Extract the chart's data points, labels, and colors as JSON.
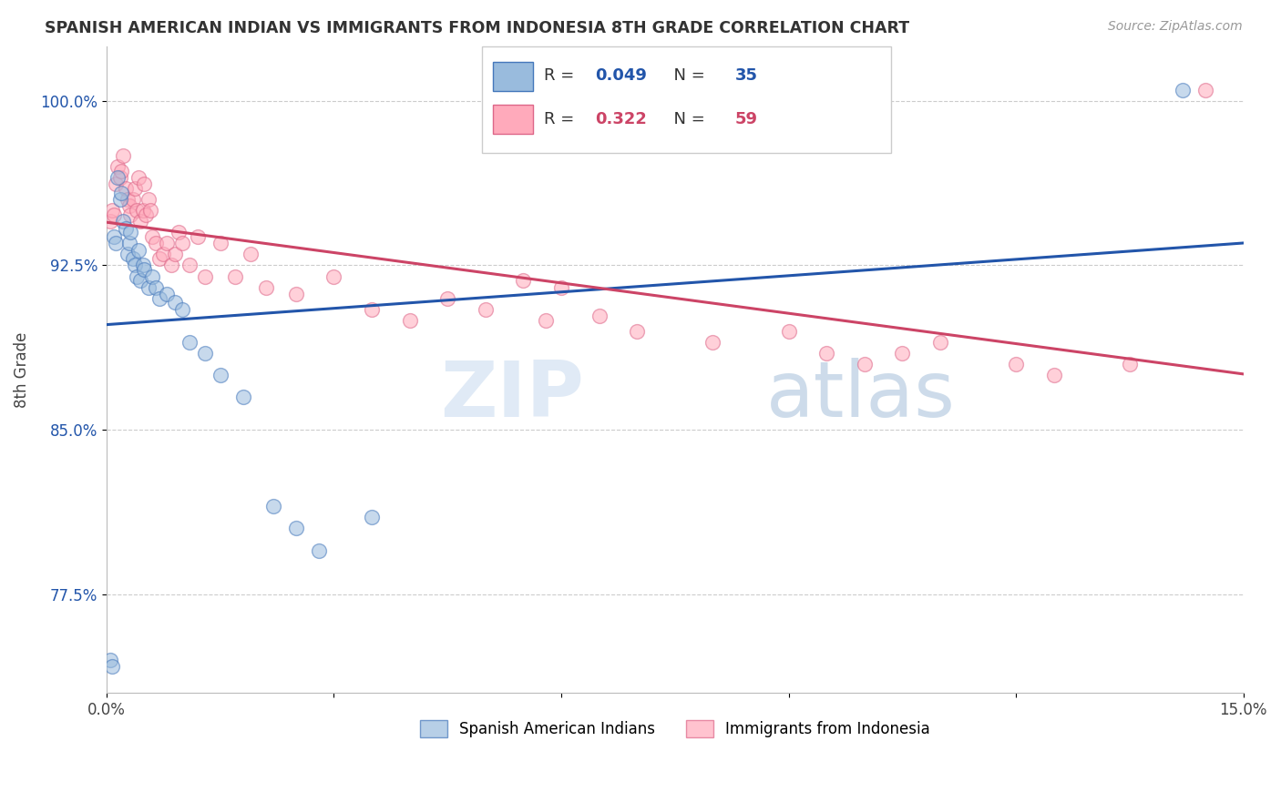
{
  "title": "SPANISH AMERICAN INDIAN VS IMMIGRANTS FROM INDONESIA 8TH GRADE CORRELATION CHART",
  "source": "Source: ZipAtlas.com",
  "ylabel": "8th Grade",
  "xlim": [
    0.0,
    15.0
  ],
  "ylim": [
    73.0,
    102.5
  ],
  "yticks": [
    77.5,
    85.0,
    92.5,
    100.0
  ],
  "yticklabels": [
    "77.5%",
    "85.0%",
    "92.5%",
    "100.0%"
  ],
  "xtick_positions": [
    0.0,
    3.0,
    6.0,
    9.0,
    12.0,
    15.0
  ],
  "xticklabels": [
    "0.0%",
    "",
    "",
    "",
    "",
    "15.0%"
  ],
  "blue_R": 0.049,
  "blue_N": 35,
  "pink_R": 0.322,
  "pink_N": 59,
  "blue_fill": "#99BBDD",
  "pink_fill": "#FFAABB",
  "blue_edge": "#4477BB",
  "pink_edge": "#DD6688",
  "blue_line": "#2255AA",
  "pink_line": "#CC4466",
  "blue_scatter_x": [
    0.05,
    0.08,
    0.1,
    0.12,
    0.15,
    0.18,
    0.2,
    0.22,
    0.25,
    0.28,
    0.3,
    0.32,
    0.35,
    0.38,
    0.4,
    0.42,
    0.45,
    0.48,
    0.5,
    0.55,
    0.6,
    0.65,
    0.7,
    0.8,
    0.9,
    1.0,
    1.1,
    1.3,
    1.5,
    1.8,
    2.2,
    2.5,
    2.8,
    3.5,
    14.2
  ],
  "blue_scatter_y": [
    74.5,
    74.2,
    93.8,
    93.5,
    96.5,
    95.5,
    95.8,
    94.5,
    94.2,
    93.0,
    93.5,
    94.0,
    92.8,
    92.5,
    92.0,
    93.2,
    91.8,
    92.5,
    92.3,
    91.5,
    92.0,
    91.5,
    91.0,
    91.2,
    90.8,
    90.5,
    89.0,
    88.5,
    87.5,
    86.5,
    81.5,
    80.5,
    79.5,
    81.0,
    100.5
  ],
  "pink_scatter_x": [
    0.05,
    0.08,
    0.1,
    0.12,
    0.15,
    0.18,
    0.2,
    0.22,
    0.25,
    0.28,
    0.3,
    0.32,
    0.35,
    0.38,
    0.4,
    0.42,
    0.45,
    0.48,
    0.5,
    0.52,
    0.55,
    0.58,
    0.6,
    0.65,
    0.7,
    0.75,
    0.8,
    0.85,
    0.9,
    0.95,
    1.0,
    1.1,
    1.2,
    1.3,
    1.5,
    1.7,
    1.9,
    2.1,
    2.5,
    3.0,
    3.5,
    4.0,
    4.5,
    5.0,
    5.5,
    5.8,
    6.0,
    6.5,
    7.0,
    8.0,
    9.0,
    9.5,
    10.0,
    10.5,
    11.0,
    12.0,
    12.5,
    13.5,
    14.5
  ],
  "pink_scatter_y": [
    94.5,
    95.0,
    94.8,
    96.2,
    97.0,
    96.5,
    96.8,
    97.5,
    96.0,
    95.5,
    95.2,
    94.8,
    95.5,
    96.0,
    95.0,
    96.5,
    94.5,
    95.0,
    96.2,
    94.8,
    95.5,
    95.0,
    93.8,
    93.5,
    92.8,
    93.0,
    93.5,
    92.5,
    93.0,
    94.0,
    93.5,
    92.5,
    93.8,
    92.0,
    93.5,
    92.0,
    93.0,
    91.5,
    91.2,
    92.0,
    90.5,
    90.0,
    91.0,
    90.5,
    91.8,
    90.0,
    91.5,
    90.2,
    89.5,
    89.0,
    89.5,
    88.5,
    88.0,
    88.5,
    89.0,
    88.0,
    87.5,
    88.0,
    100.5
  ],
  "watermark_zip": "ZIP",
  "watermark_atlas": "atlas",
  "legend_title_blue": "R = 0.049   N = 35",
  "legend_title_pink": "R = 0.322   N = 59"
}
